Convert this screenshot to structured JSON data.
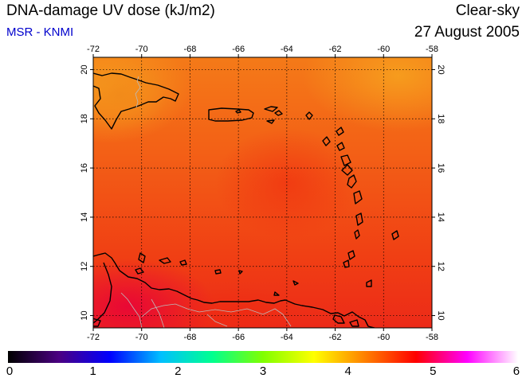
{
  "header": {
    "title": "DNA-damage UV dose (kJ/m2)",
    "credit": "MSR - KNMI",
    "sky_condition": "Clear-sky",
    "date": "27 August 2005"
  },
  "map": {
    "lon_ticks": [
      "-72",
      "-70",
      "-68",
      "-66",
      "-64",
      "-62",
      "-60",
      "-58"
    ],
    "lat_ticks": [
      "20",
      "18",
      "16",
      "14",
      "12",
      "10"
    ],
    "lon_range": [
      -72,
      -58
    ],
    "lat_range": [
      9.5,
      20.5
    ],
    "coastline_color": "#000000",
    "border_color": "#bbbbbb",
    "grid_style": "dotted"
  },
  "colorbar": {
    "labels": [
      "0",
      "1",
      "2",
      "3",
      "4",
      "5",
      "6"
    ],
    "min": 0,
    "max": 6,
    "colors": [
      "#000000",
      "#4b0082",
      "#0000ff",
      "#00c0ff",
      "#00ff90",
      "#80ff00",
      "#ffff00",
      "#ff8000",
      "#ff0000",
      "#ff00ff",
      "#ffffff"
    ]
  }
}
